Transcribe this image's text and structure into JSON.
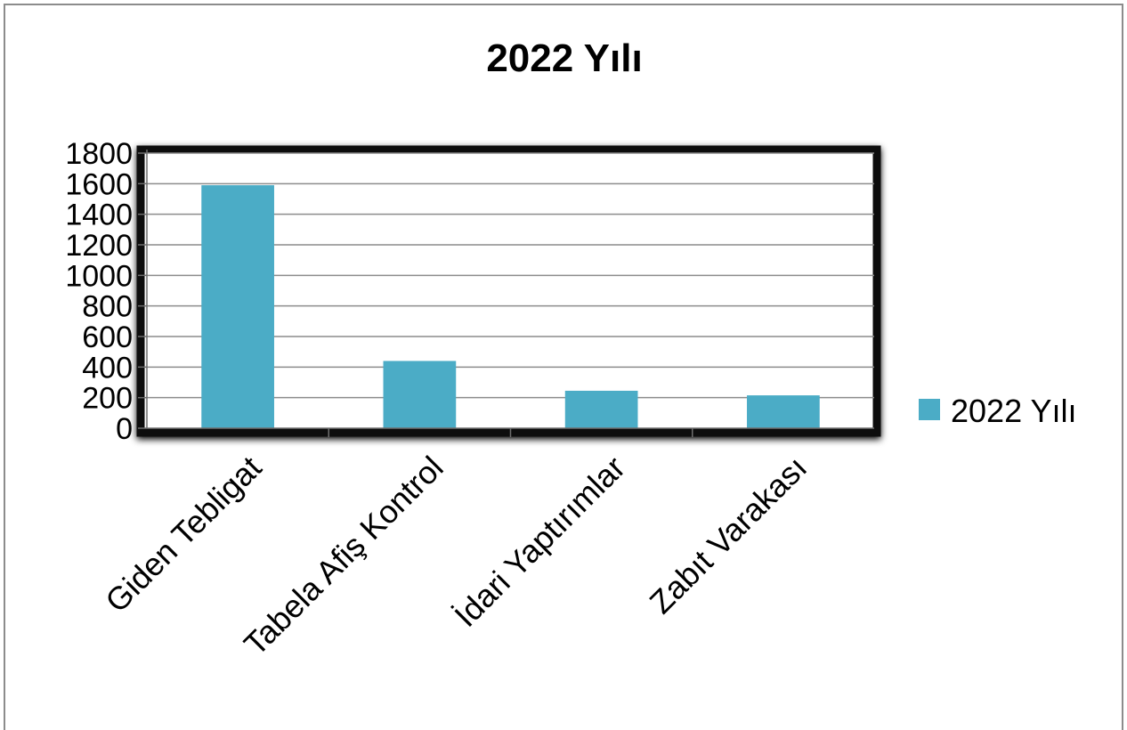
{
  "chart_data": {
    "type": "bar",
    "title": "2022 Yılı",
    "categories": [
      "Giden Tebligat",
      "Tabela Afiş Kontrol",
      "İdari Yaptırımlar",
      "Zabıt Varakası"
    ],
    "series": [
      {
        "name": "2022 Yılı",
        "values": [
          1590,
          440,
          245,
          215
        ],
        "color": "#4BACC6"
      }
    ],
    "ylim": [
      0,
      1800
    ],
    "yticks": [
      0,
      200,
      400,
      600,
      800,
      1000,
      1200,
      1400,
      1600,
      1800
    ],
    "xlabel": "",
    "ylabel": "",
    "grid": true,
    "legend_position": "right"
  }
}
